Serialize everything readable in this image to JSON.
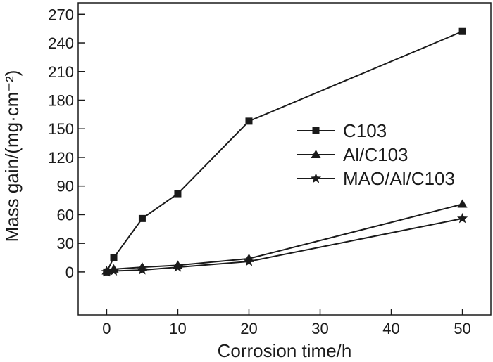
{
  "chart_data": {
    "type": "line",
    "title": "",
    "xlabel": "Corrosion time/h",
    "ylabel": "Mass gain/(mg·cm⁻²)",
    "xlim": [
      -4,
      54
    ],
    "ylim": [
      -45,
      282
    ],
    "xticks": [
      0,
      10,
      20,
      30,
      40,
      50
    ],
    "yticks": [
      0,
      30,
      60,
      90,
      120,
      150,
      180,
      210,
      240,
      270
    ],
    "legend_position": "right",
    "series": [
      {
        "name": "C103",
        "marker": "square",
        "x": [
          0,
          1,
          5,
          10,
          20,
          50
        ],
        "y": [
          0,
          15,
          56,
          82,
          158,
          252
        ]
      },
      {
        "name": "Al/C103",
        "marker": "triangle",
        "x": [
          0,
          1,
          5,
          10,
          20,
          50
        ],
        "y": [
          1,
          3,
          5,
          7,
          14,
          71
        ]
      },
      {
        "name": "MAO/Al/C103",
        "marker": "star",
        "x": [
          0,
          1,
          5,
          10,
          20,
          50
        ],
        "y": [
          0,
          1,
          2,
          5,
          11,
          56
        ]
      }
    ],
    "colors": {
      "line": "#1a1a1a",
      "background": "#ffffff"
    }
  }
}
